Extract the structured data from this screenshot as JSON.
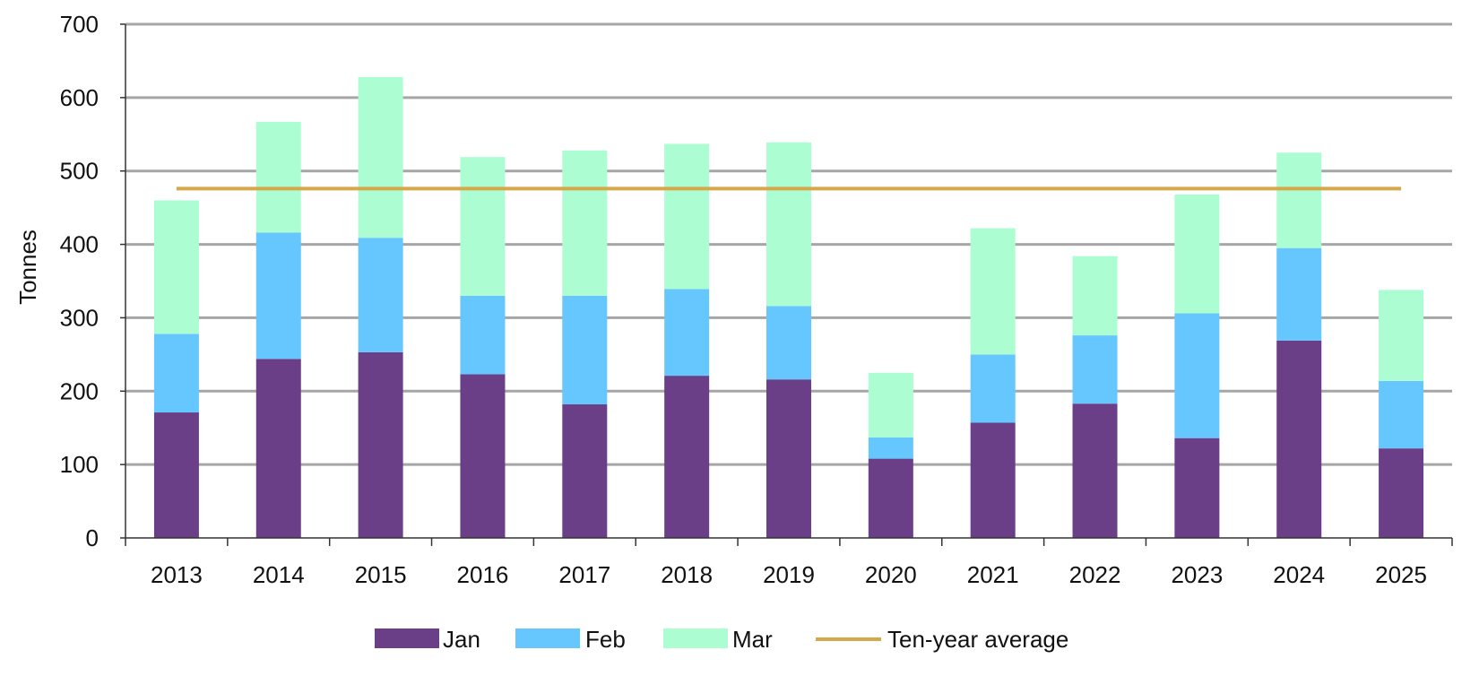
{
  "chart_data": {
    "type": "bar",
    "stacked": true,
    "ylabel": "Tonnes",
    "xlabel": "",
    "ylim": [
      0,
      700
    ],
    "yticks": [
      0,
      100,
      200,
      300,
      400,
      500,
      600,
      700
    ],
    "grid": true,
    "legend_position": "bottom",
    "categories": [
      "2013",
      "2014",
      "2015",
      "2016",
      "2017",
      "2018",
      "2019",
      "2020",
      "2021",
      "2022",
      "2023",
      "2024",
      "2025"
    ],
    "series": [
      {
        "name": "Jan",
        "color": "#6b3f87",
        "values": [
          171,
          244,
          253,
          223,
          182,
          221,
          216,
          108,
          157,
          183,
          136,
          269,
          122
        ]
      },
      {
        "name": "Feb",
        "color": "#66c7ff",
        "values": [
          107,
          172,
          156,
          107,
          148,
          118,
          100,
          29,
          93,
          93,
          170,
          126,
          92
        ]
      },
      {
        "name": "Mar",
        "color": "#adfdd3",
        "values": [
          182,
          151,
          219,
          189,
          198,
          198,
          223,
          88,
          172,
          108,
          162,
          130,
          124
        ]
      }
    ],
    "average_line": {
      "name": "Ten-year average",
      "color": "#d4a84b",
      "value": 476,
      "from": "2013",
      "to": "2025"
    }
  }
}
